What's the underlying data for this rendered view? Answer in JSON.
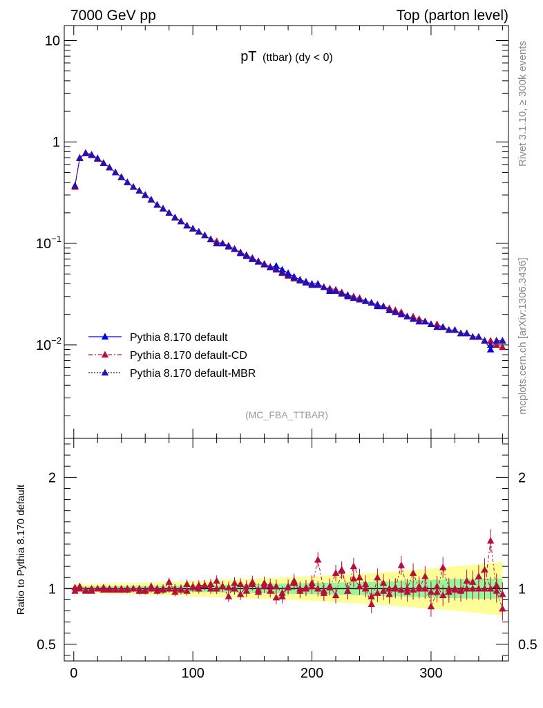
{
  "header": {
    "left": "7000 GeV pp",
    "right": "Top (parton level)"
  },
  "plot_title": {
    "main": "pT",
    "sub": "(ttbar) (dy < 0)"
  },
  "side_labels": {
    "rivet": "Rivet 3.1.10, ≥ 300k events",
    "mcplots": "mcplots.cern.ch [arXiv:1306.3436]"
  },
  "analysis_tag": "(MC_FBA_TTBAR)",
  "ratio_ylabel": "Ratio to Pythia 8.170 default",
  "colors": {
    "default": "#0000e6",
    "cd": "#b3103c",
    "mbr": "#2a0fb0",
    "band_inner": "#98f598",
    "band_outer": "#fffd98"
  },
  "chart_data": [
    {
      "type": "line",
      "panel": "main",
      "yscale": "log",
      "xlim": [
        -8,
        365
      ],
      "ylim": [
        0.0012,
        14
      ],
      "x_ticks": [
        0,
        100,
        200,
        300
      ],
      "y_tick_labels": [
        {
          "value": 10,
          "label": "10",
          "sup": ""
        },
        {
          "value": 1,
          "label": "1",
          "sup": ""
        },
        {
          "value": 0.1,
          "label": "10",
          "sup": "−1"
        },
        {
          "value": 0.01,
          "label": "10",
          "sup": "−2"
        }
      ],
      "legend_position": "lower-left",
      "x": [
        1,
        5,
        10,
        15,
        20,
        25,
        30,
        35,
        40,
        45,
        50,
        55,
        60,
        65,
        70,
        75,
        80,
        85,
        90,
        95,
        100,
        105,
        110,
        115,
        120,
        125,
        130,
        135,
        140,
        145,
        150,
        155,
        160,
        165,
        170,
        175,
        180,
        185,
        190,
        195,
        200,
        205,
        210,
        215,
        220,
        225,
        230,
        235,
        240,
        245,
        250,
        255,
        260,
        265,
        270,
        275,
        280,
        285,
        290,
        295,
        300,
        305,
        310,
        315,
        320,
        325,
        330,
        335,
        340,
        345,
        350,
        355,
        360
      ],
      "series": [
        {
          "name": "Pythia 8.170 default",
          "style": "solid",
          "values": [
            0.37,
            0.69,
            0.78,
            0.75,
            0.69,
            0.62,
            0.56,
            0.5,
            0.45,
            0.4,
            0.36,
            0.33,
            0.3,
            0.27,
            0.24,
            0.22,
            0.2,
            0.18,
            0.165,
            0.15,
            0.14,
            0.13,
            0.12,
            0.11,
            0.1,
            0.1,
            0.093,
            0.088,
            0.08,
            0.075,
            0.07,
            0.066,
            0.062,
            0.058,
            0.06,
            0.055,
            0.051,
            0.047,
            0.044,
            0.042,
            0.04,
            0.04,
            0.037,
            0.034,
            0.034,
            0.032,
            0.03,
            0.029,
            0.028,
            0.027,
            0.026,
            0.024,
            0.024,
            0.022,
            0.021,
            0.02,
            0.019,
            0.018,
            0.017,
            0.017,
            0.016,
            0.015,
            0.015,
            0.014,
            0.014,
            0.013,
            0.013,
            0.012,
            0.012,
            0.011,
            0.009,
            0.011,
            0.011
          ]
        },
        {
          "name": "Pythia 8.170 default-CD",
          "style": "dashdot",
          "values": [
            0.36,
            0.7,
            0.78,
            0.74,
            0.68,
            0.62,
            0.56,
            0.5,
            0.45,
            0.4,
            0.36,
            0.33,
            0.3,
            0.27,
            0.24,
            0.22,
            0.2,
            0.18,
            0.165,
            0.15,
            0.14,
            0.13,
            0.12,
            0.11,
            0.105,
            0.1,
            0.095,
            0.088,
            0.082,
            0.077,
            0.072,
            0.067,
            0.063,
            0.059,
            0.055,
            0.051,
            0.048,
            0.045,
            0.043,
            0.041,
            0.039,
            0.039,
            0.037,
            0.036,
            0.035,
            0.033,
            0.031,
            0.03,
            0.029,
            0.027,
            0.026,
            0.025,
            0.024,
            0.023,
            0.022,
            0.021,
            0.019,
            0.019,
            0.018,
            0.017,
            0.016,
            0.016,
            0.015,
            0.014,
            0.014,
            0.013,
            0.013,
            0.012,
            0.012,
            0.011,
            0.011,
            0.01,
            0.0095
          ]
        },
        {
          "name": "Pythia 8.170 default-MBR",
          "style": "dotted",
          "values": [
            0.37,
            0.69,
            0.77,
            0.74,
            0.69,
            0.62,
            0.56,
            0.5,
            0.45,
            0.4,
            0.36,
            0.33,
            0.3,
            0.27,
            0.24,
            0.22,
            0.2,
            0.18,
            0.165,
            0.15,
            0.14,
            0.13,
            0.12,
            0.11,
            0.1,
            0.1,
            0.094,
            0.088,
            0.081,
            0.076,
            0.071,
            0.066,
            0.062,
            0.058,
            0.056,
            0.052,
            0.049,
            0.046,
            0.043,
            0.041,
            0.039,
            0.039,
            0.037,
            0.035,
            0.034,
            0.032,
            0.031,
            0.029,
            0.028,
            0.027,
            0.026,
            0.025,
            0.024,
            0.022,
            0.021,
            0.02,
            0.019,
            0.018,
            0.017,
            0.017,
            0.016,
            0.015,
            0.015,
            0.014,
            0.014,
            0.013,
            0.013,
            0.012,
            0.012,
            0.011,
            0.01,
            0.011,
            0.011
          ]
        }
      ]
    },
    {
      "type": "line",
      "panel": "ratio",
      "ylabel": "Ratio to Pythia 8.170 default",
      "xlim": [
        -8,
        365
      ],
      "ylim": [
        0.35,
        2.35
      ],
      "y_ticks": [
        0.5,
        1,
        2
      ],
      "x_ticks": [
        0,
        100,
        200,
        300
      ],
      "band": {
        "x": [
          0,
          50,
          100,
          150,
          200,
          250,
          300,
          340,
          360
        ],
        "inner": [
          0.02,
          0.025,
          0.03,
          0.04,
          0.05,
          0.06,
          0.08,
          0.09,
          0.09
        ],
        "outer": [
          0.04,
          0.05,
          0.07,
          0.09,
          0.11,
          0.14,
          0.18,
          0.22,
          0.24
        ]
      },
      "series": [
        {
          "name": "Pythia 8.170 default-CD",
          "values": [
            0.98,
            1.02,
            0.99,
            0.98,
            1.0,
            1.01,
            0.99,
            1.0,
            1.0,
            0.99,
            1.0,
            1.0,
            0.98,
            1.02,
            1.0,
            0.99,
            1.06,
            0.97,
            1.0,
            0.98,
            1.02,
            1.03,
            1.03,
            1.0,
            1.07,
            1.02,
            0.93,
            1.05,
            1.04,
            0.98,
            1.06,
            0.97,
            1.05,
            1.03,
            0.92,
            0.93,
            1.02,
            1.05,
            0.98,
            1.0,
            1.02,
            1.26,
            0.98,
            1.02,
            0.94,
            1.16,
            0.98,
            1.2,
            1.1,
            1.04,
            0.93,
            0.96,
            0.98,
            1.0,
            1.01,
            0.99,
            0.97,
            0.99,
            1.02,
            1.0,
            0.97,
            1.02,
            0.94,
            0.97,
            1.0,
            0.99,
            1.0,
            1.0,
            1.0,
            1.0,
            1.43,
            0.98,
            0.82
          ],
          "values_alt": [
            1.01,
            1.0,
            0.98,
            1.0,
            1.0,
            0.99,
            1.0,
            0.99,
            0.99,
            1.0,
            1.0,
            0.98,
            0.99,
            1.0,
            0.98,
            1.0,
            1.0,
            1.0,
            0.99,
            1.04,
            1.01,
            1.0,
            1.03,
            1.04,
            1.0,
            1.02,
            1.01,
            1.0,
            0.95,
            1.02,
            1.04,
            0.99,
            1.02,
            0.98,
            1.02,
            0.96,
            1.01,
            1.07,
            1.0,
            1.01,
            1.05,
            1.0,
            0.96,
            1.01,
            1.14,
            1.17,
            0.98,
            1.09,
            1.02,
            1.0,
            0.86,
            1.1,
            1.05,
            0.95,
            1.0,
            1.21,
            1.0,
            1.14,
            1.0,
            1.11,
            0.84,
            0.97,
            1.19,
            1.0,
            0.99,
            0.98,
            1.07,
            1.06,
            1.11,
            1.17,
            1.0,
            1.03,
            0.95
          ]
        }
      ]
    }
  ]
}
